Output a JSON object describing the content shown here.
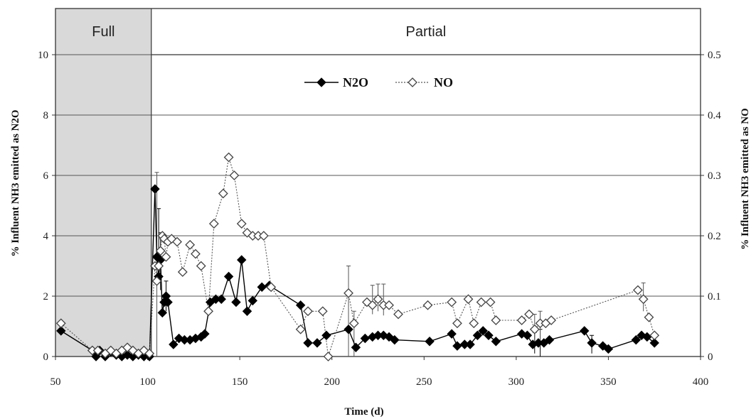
{
  "chart_data": {
    "type": "line",
    "xlabel": "Time (d)",
    "ylabel_left": "% Influent NH3 emitted as N2O",
    "ylabel_right": "% Influent NH3 emitted as NO",
    "xlim": [
      50,
      400
    ],
    "ylim_left": [
      0,
      10
    ],
    "ylim_right": [
      0,
      0.5
    ],
    "x_ticks": [
      "50",
      "100",
      "150",
      "200",
      "250",
      "300",
      "350",
      "400"
    ],
    "y_ticks_left": [
      "0",
      "2",
      "4",
      "6",
      "8",
      "10"
    ],
    "y_ticks_right": [
      "0",
      "0.1",
      "0.2",
      "0.3",
      "0.4",
      "0.5"
    ],
    "grid": "horizontal",
    "legend_placement": "top-center",
    "phases": [
      {
        "label": "Full",
        "start": 50,
        "end": 102,
        "shaded": true
      },
      {
        "label": "Partial",
        "start": 102,
        "end": 400,
        "shaded": false
      }
    ],
    "series": [
      {
        "name": "N2O",
        "axis": "left",
        "marker": "filled-diamond",
        "color": "#000000",
        "line_style": "solid",
        "x": [
          53,
          70,
          72,
          74,
          77,
          80,
          83,
          86,
          89,
          92,
          95,
          98,
          101,
          104,
          105,
          106,
          107,
          108,
          109,
          110,
          111,
          114,
          117,
          120,
          123,
          126,
          129,
          131,
          134,
          137,
          140,
          144,
          148,
          151,
          154,
          157,
          162,
          166,
          183,
          187,
          192,
          197,
          209,
          213,
          218,
          222,
          225,
          228,
          231,
          234,
          253,
          265,
          268,
          272,
          275,
          279,
          282,
          285,
          289,
          303,
          306,
          309,
          312,
          315,
          318,
          337,
          341,
          347,
          350,
          365,
          368,
          371,
          375
        ],
        "y": [
          0.85,
          0.2,
          0.0,
          0.2,
          0.0,
          0.15,
          0.05,
          0.0,
          0.05,
          0.0,
          0.05,
          0.0,
          0.0,
          5.55,
          3.3,
          2.65,
          3.2,
          1.45,
          1.8,
          2.0,
          1.8,
          0.4,
          0.6,
          0.55,
          0.55,
          0.6,
          0.65,
          0.75,
          1.8,
          1.9,
          1.9,
          2.65,
          1.8,
          3.2,
          1.5,
          1.85,
          2.3,
          2.35,
          1.7,
          0.45,
          0.45,
          0.7,
          0.9,
          0.3,
          0.6,
          0.65,
          0.7,
          0.7,
          0.65,
          0.55,
          0.5,
          0.75,
          0.35,
          0.4,
          0.4,
          0.7,
          0.85,
          0.7,
          0.5,
          0.75,
          0.7,
          0.4,
          0.45,
          0.45,
          0.55,
          0.85,
          0.45,
          0.35,
          0.25,
          0.55,
          0.7,
          0.65,
          0.45
        ]
      },
      {
        "name": "NO",
        "axis": "right",
        "marker": "open-diamond",
        "color": "#555555",
        "line_style": "dotted",
        "x": [
          53,
          70,
          73,
          77,
          80,
          83,
          86,
          89,
          92,
          95,
          98,
          101,
          104,
          105,
          106,
          107,
          108,
          109,
          110,
          111,
          113,
          116,
          119,
          123,
          126,
          129,
          133,
          136,
          141,
          144,
          147,
          151,
          154,
          157,
          160,
          163,
          167,
          183,
          187,
          195,
          198,
          209,
          212,
          219,
          222,
          225,
          228,
          231,
          236,
          252,
          265,
          268,
          274,
          277,
          281,
          286,
          289,
          303,
          307,
          310,
          313,
          316,
          319,
          366,
          369,
          372,
          375
        ],
        "y": [
          0.055,
          0.01,
          0.01,
          0.005,
          0.01,
          0.005,
          0.01,
          0.015,
          0.01,
          0.005,
          0.01,
          0.005,
          0.15,
          0.125,
          0.15,
          0.175,
          0.2,
          0.195,
          0.165,
          0.19,
          0.195,
          0.19,
          0.14,
          0.185,
          0.17,
          0.15,
          0.075,
          0.22,
          0.27,
          0.33,
          0.3,
          0.22,
          0.205,
          0.2,
          0.2,
          0.2,
          0.115,
          0.045,
          0.075,
          0.075,
          0.0,
          0.105,
          0.055,
          0.09,
          0.085,
          0.095,
          0.085,
          0.085,
          0.07,
          0.085,
          0.09,
          0.055,
          0.095,
          0.055,
          0.09,
          0.09,
          0.06,
          0.06,
          0.07,
          0.045,
          0.055,
          0.055,
          0.06,
          0.11,
          0.095,
          0.065,
          0.035
        ]
      }
    ],
    "error_bars": [
      {
        "series": "N2O",
        "x": 106,
        "low": 2.6,
        "high": 4.9
      },
      {
        "series": "N2O",
        "x": 107,
        "low": 2.2,
        "high": 4.1
      },
      {
        "series": "N2O",
        "x": 110,
        "low": 1.5,
        "high": 2.5
      },
      {
        "series": "N2O",
        "x": 310,
        "low": 0.1,
        "high": 0.8
      },
      {
        "series": "N2O",
        "x": 313,
        "low": 0.0,
        "high": 0.9
      },
      {
        "series": "N2O",
        "x": 341,
        "low": 0.1,
        "high": 0.7
      },
      {
        "series": "NO",
        "x": 105,
        "low": 0.0,
        "high": 0.305
      },
      {
        "series": "NO",
        "x": 209,
        "low": 0.0,
        "high": 0.15
      },
      {
        "series": "NO",
        "x": 212,
        "low": 0.0,
        "high": 0.075
      },
      {
        "series": "NO",
        "x": 222,
        "low": 0.07,
        "high": 0.118
      },
      {
        "series": "NO",
        "x": 225,
        "low": 0.075,
        "high": 0.12
      },
      {
        "series": "NO",
        "x": 228,
        "low": 0.068,
        "high": 0.12
      },
      {
        "series": "NO",
        "x": 310,
        "low": 0.02,
        "high": 0.07
      },
      {
        "series": "NO",
        "x": 313,
        "low": 0.02,
        "high": 0.075
      },
      {
        "series": "NO",
        "x": 369,
        "low": 0.075,
        "high": 0.122
      }
    ]
  }
}
